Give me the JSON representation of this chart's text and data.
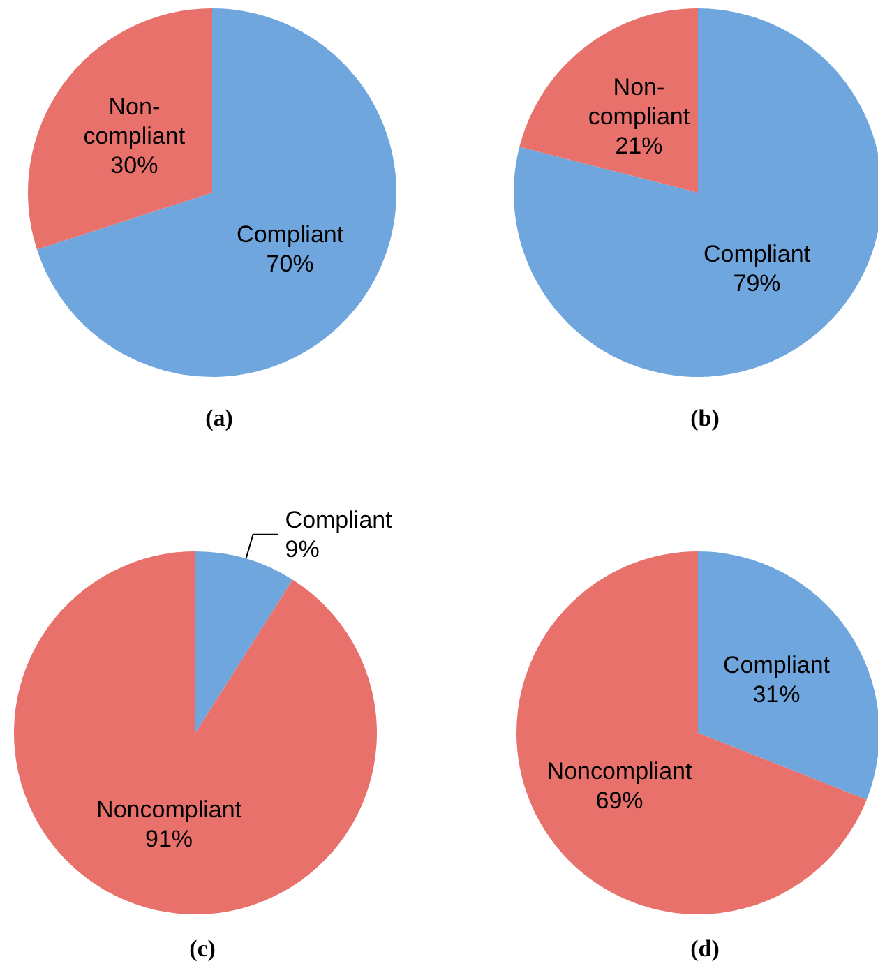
{
  "chart_data": [
    {
      "type": "pie",
      "title": "(a)",
      "categories": [
        "Compliant",
        "Non-compliant"
      ],
      "values": [
        70,
        30
      ],
      "colors": [
        "#6fa6dd",
        "#e8716b"
      ],
      "value_labels": [
        "70%",
        "30%"
      ]
    },
    {
      "type": "pie",
      "title": "(b)",
      "categories": [
        "Compliant",
        "Non-compliant"
      ],
      "values": [
        79,
        21
      ],
      "colors": [
        "#6fa6dd",
        "#e8716b"
      ],
      "value_labels": [
        "79%",
        "21%"
      ]
    },
    {
      "type": "pie",
      "title": "(c)",
      "categories": [
        "Compliant",
        "Noncompliant"
      ],
      "values": [
        9,
        91
      ],
      "colors": [
        "#6fa6dd",
        "#e8716b"
      ],
      "value_labels": [
        "9%",
        "91%"
      ]
    },
    {
      "type": "pie",
      "title": "(d)",
      "categories": [
        "Compliant",
        "Noncompliant"
      ],
      "values": [
        31,
        69
      ],
      "colors": [
        "#6fa6dd",
        "#e8716b"
      ],
      "value_labels": [
        "31%",
        "69%"
      ]
    }
  ]
}
